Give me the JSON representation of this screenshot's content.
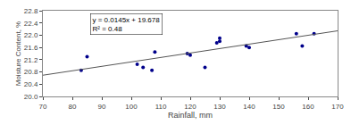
{
  "chart_data": {
    "type": "scatter",
    "xlabel": "Rainfall, mm",
    "ylabel": "Moisture Content, %",
    "series": [
      {
        "type": "scatter",
        "color": "#00008B",
        "x": [
          83,
          85,
          102,
          104,
          107,
          108,
          119,
          120,
          125,
          129,
          130,
          130,
          139,
          140,
          156,
          158,
          162
        ],
        "values": [
          20.85,
          21.3,
          21.05,
          20.95,
          20.85,
          21.45,
          21.4,
          21.35,
          20.95,
          21.75,
          21.9,
          21.8,
          21.65,
          21.6,
          22.05,
          21.65,
          22.05
        ]
      },
      {
        "type": "line",
        "color": "#555555",
        "x": [
          70,
          170
        ],
        "values": [
          20.693,
          22.143
        ]
      }
    ],
    "annotations": [
      "y = 0.0145x + 19.678",
      "R² = 0.48"
    ],
    "xlim": [
      70,
      170
    ],
    "ylim": [
      20.0,
      22.8
    ],
    "xticks": [
      70,
      80,
      90,
      100,
      110,
      120,
      130,
      140,
      150,
      160,
      170
    ],
    "yticks": [
      {
        "value": 20.0,
        "label": "20.0"
      },
      20.4,
      20.8,
      21.2,
      21.6,
      {
        "value": 22.0,
        "label": "22.0"
      },
      22.4,
      22.8
    ],
    "grid": false
  }
}
